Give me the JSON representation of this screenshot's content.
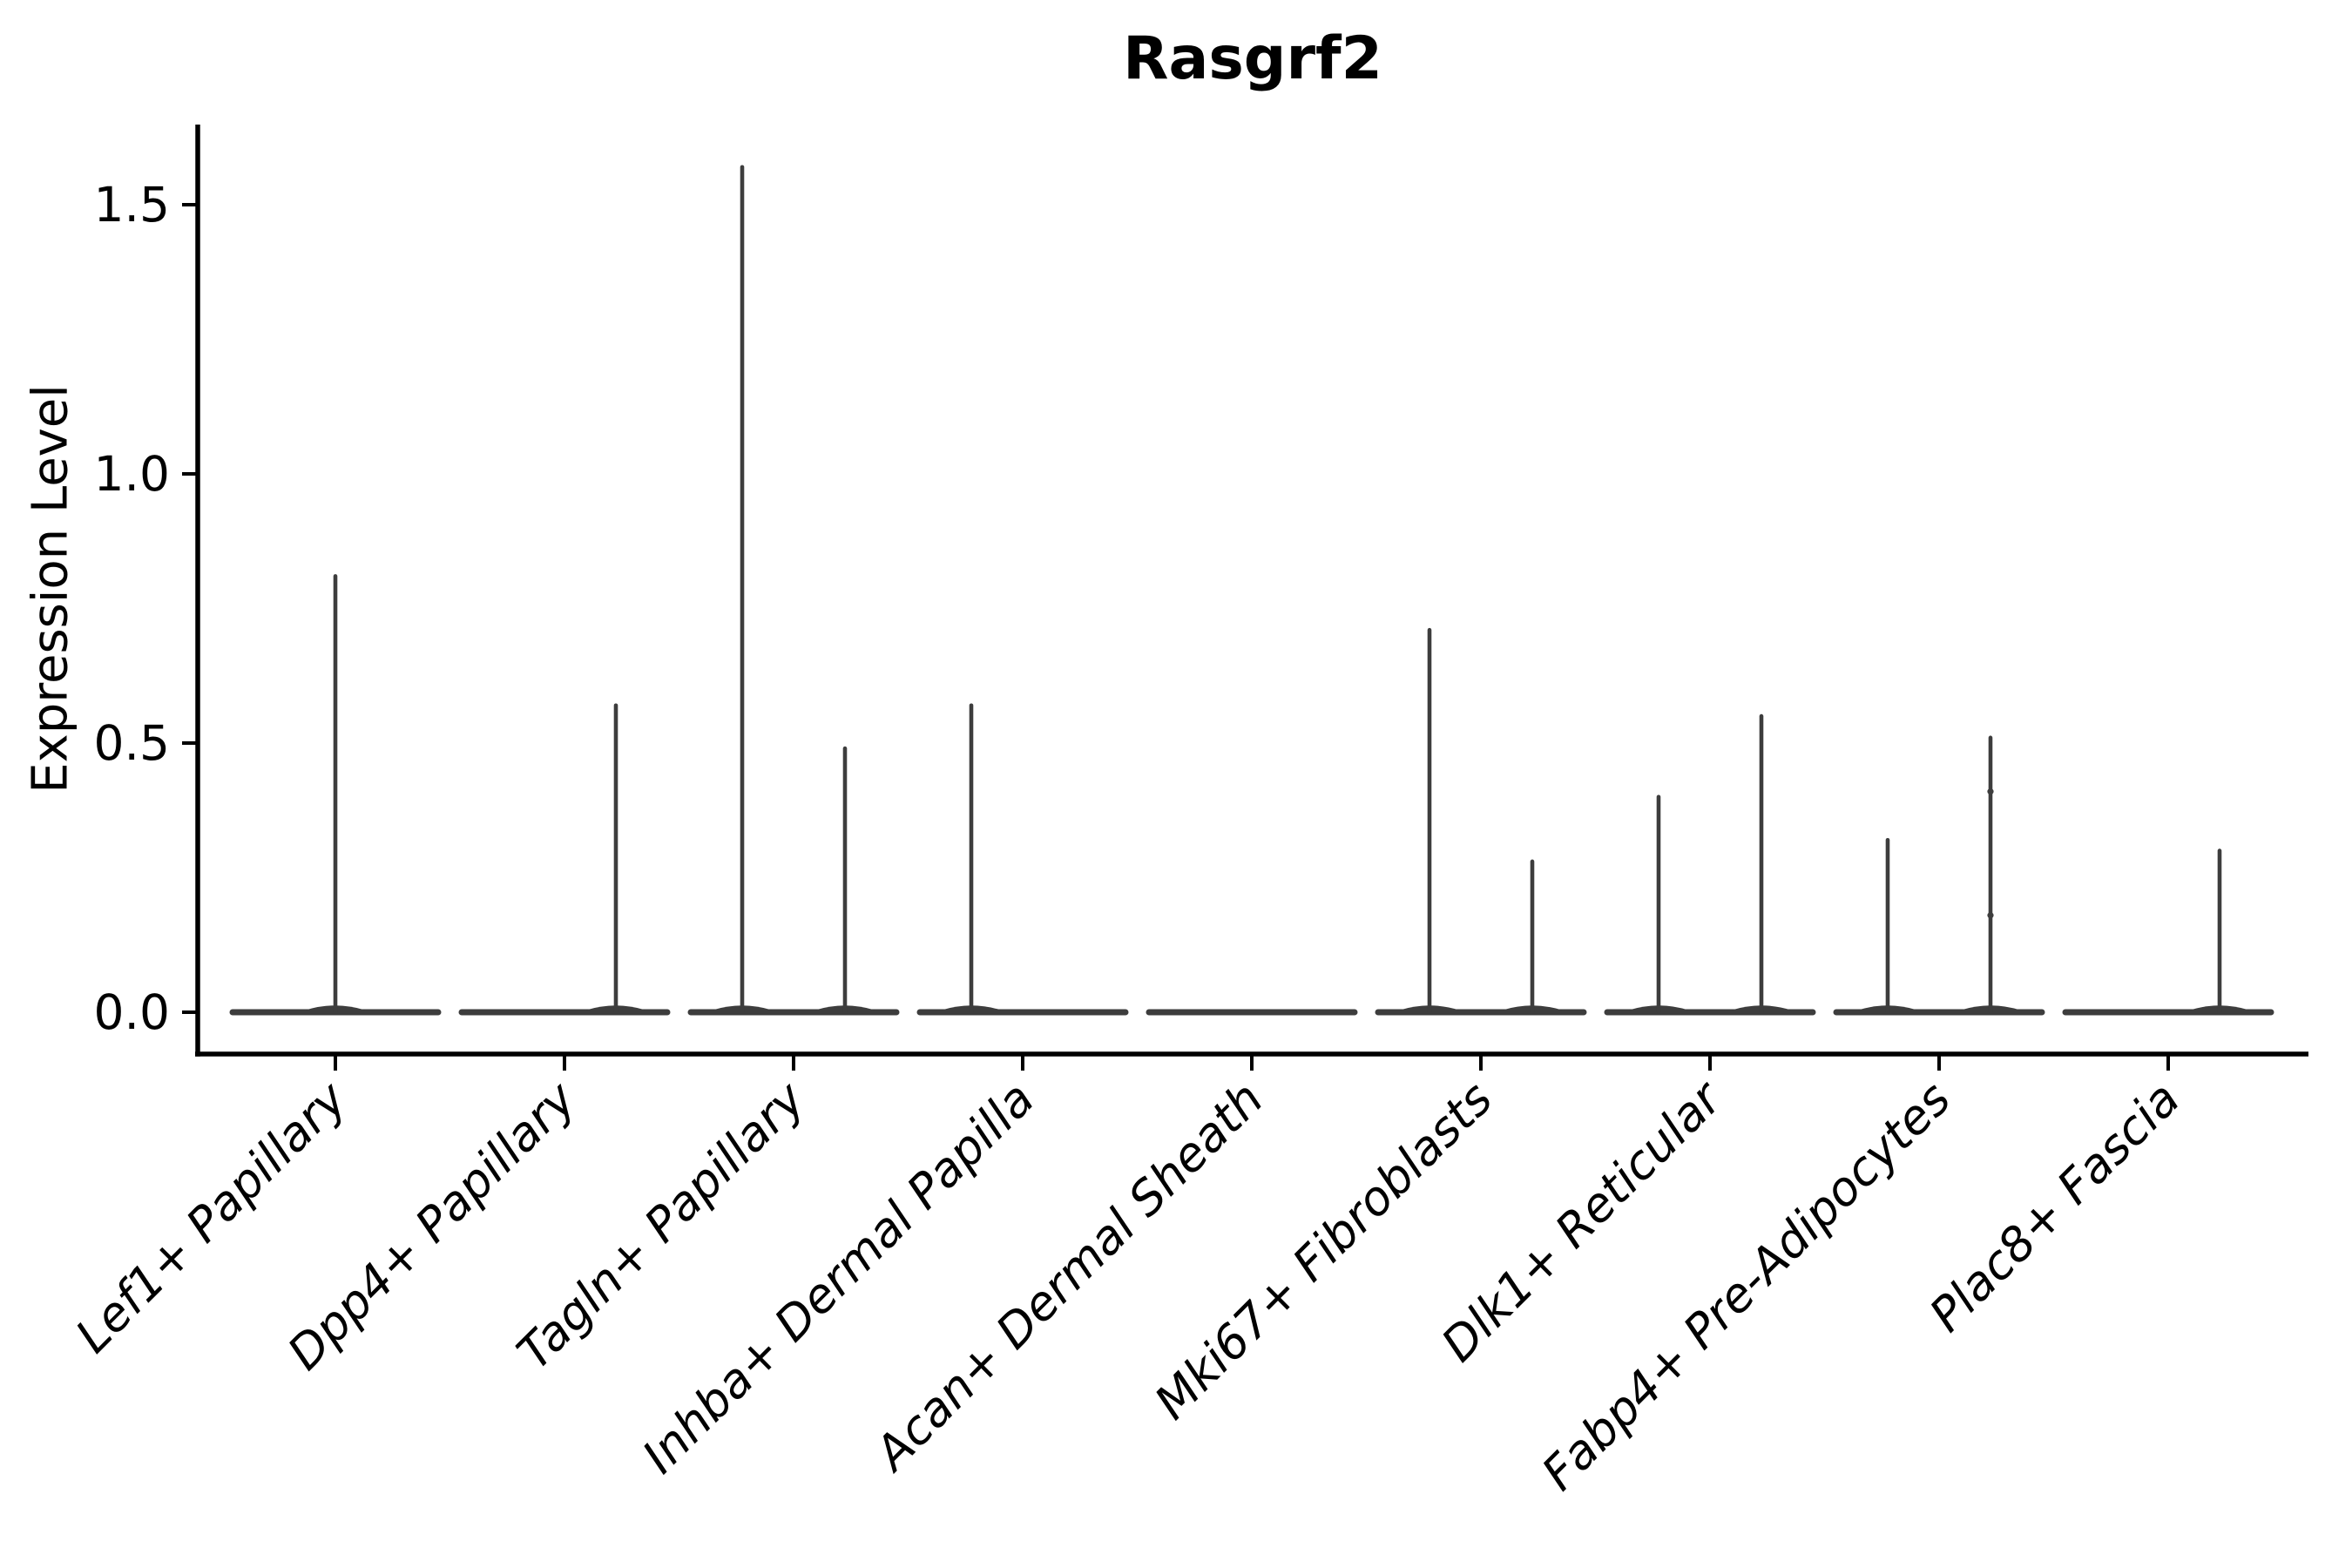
{
  "chart_data": {
    "type": "violin",
    "title": "Rasgrf2",
    "xlabel": "",
    "ylabel": "Expression Level",
    "ylim": [
      0,
      1.65
    ],
    "yticks": [
      0.0,
      0.5,
      1.0,
      1.5
    ],
    "ytick_labels": [
      "0.0",
      "0.5",
      "1.0",
      "1.5"
    ],
    "grid": false,
    "legend": "none",
    "categories": [
      "Lef1+ Papillary",
      "Dpp4+ Papillary",
      "Tagln+ Papillary",
      "Inhba+ Dermal Papilla",
      "Acan+ Dermal Sheath",
      "Mki67+ Fibroblasts",
      "Dlk1+ Reticular",
      "Fabp4+ Pre-Adipocytes",
      "Plac8+ Fascia"
    ],
    "violins": [
      {
        "label": "Lef1+ Papillary",
        "zero_bulk": true,
        "tails": [
          {
            "offset": "center",
            "max": 0.81
          }
        ]
      },
      {
        "label": "Dpp4+ Papillary",
        "zero_bulk": true,
        "tails": [
          {
            "offset": "right",
            "max": 0.57
          }
        ]
      },
      {
        "label": "Tagln+ Papillary",
        "zero_bulk": true,
        "tails": [
          {
            "offset": "left",
            "max": 1.57
          },
          {
            "offset": "right",
            "max": 0.49
          }
        ]
      },
      {
        "label": "Inhba+ Dermal Papilla",
        "zero_bulk": true,
        "tails": [
          {
            "offset": "left",
            "max": 0.57
          }
        ]
      },
      {
        "label": "Acan+ Dermal Sheath",
        "zero_bulk": true,
        "tails": []
      },
      {
        "label": "Mki67+ Fibroblasts",
        "zero_bulk": true,
        "tails": [
          {
            "offset": "left",
            "max": 0.71
          },
          {
            "offset": "right",
            "max": 0.28
          }
        ]
      },
      {
        "label": "Dlk1+ Reticular",
        "zero_bulk": true,
        "tails": [
          {
            "offset": "left",
            "max": 0.4
          },
          {
            "offset": "right",
            "max": 0.55
          }
        ]
      },
      {
        "label": "Fabp4+ Pre-Adipocytes",
        "zero_bulk": true,
        "tails": [
          {
            "offset": "left",
            "max": 0.32
          },
          {
            "offset": "right",
            "max": 0.51,
            "points": [
              0.41,
              0.18
            ]
          }
        ]
      },
      {
        "label": "Plac8+ Fascia",
        "zero_bulk": true,
        "tails": [
          {
            "offset": "right",
            "max": 0.3
          }
        ]
      }
    ],
    "colors": {
      "violin": "#3d3d3d",
      "axis": "#000000",
      "text": "#000000",
      "background": "#ffffff"
    }
  }
}
